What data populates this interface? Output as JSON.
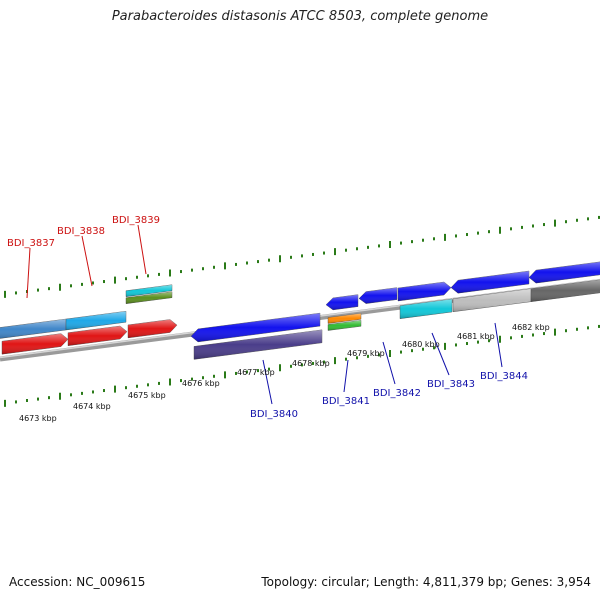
{
  "title": "Parabacteroides distasonis ATCC 8503, complete genome",
  "footer": {
    "accession": "Accession: NC_009615",
    "stats": "Topology: circular; Length: 4,811,379 bp; Genes: 3,954"
  },
  "colors": {
    "tick": "#2a7a18",
    "backbone": "#888888",
    "label_red": "#cc1111",
    "label_blue": "#1111aa"
  },
  "scale_labels": [
    "4673 kbp",
    "4674 kbp",
    "4675 kbp",
    "4676 kbp",
    "4677 kbp",
    "4678 kbp",
    "4679 kbp",
    "4680 kbp",
    "4681 kbp",
    "4682 kbp"
  ],
  "gene_labels": [
    {
      "name": "BDI_3837",
      "color": "red"
    },
    {
      "name": "BDI_3838",
      "color": "red"
    },
    {
      "name": "BDI_3839",
      "color": "red"
    },
    {
      "name": "BDI_3840",
      "color": "blue"
    },
    {
      "name": "BDI_3841",
      "color": "blue"
    },
    {
      "name": "BDI_3842",
      "color": "blue"
    },
    {
      "name": "BDI_3843",
      "color": "blue"
    },
    {
      "name": "BDI_3844",
      "color": "blue"
    }
  ],
  "features": [
    {
      "type": "gene",
      "strand": "+",
      "color": "#3f86c9"
    },
    {
      "type": "gene",
      "strand": "+",
      "color": "#1ea8e8"
    },
    {
      "type": "gene",
      "strand": "+",
      "color": "#11c7d8"
    },
    {
      "type": "gene",
      "strand": "+",
      "color": "#5b8f1e"
    },
    {
      "type": "gene",
      "strand": "+",
      "color": "#e01515"
    },
    {
      "type": "gene",
      "strand": "+",
      "color": "#e01515"
    },
    {
      "type": "gene",
      "strand": "+",
      "color": "#e01515"
    },
    {
      "type": "gene",
      "strand": "-",
      "color": "#1212ee"
    },
    {
      "type": "gene",
      "strand": "-",
      "color": "#4a3d8a"
    },
    {
      "type": "gene",
      "strand": "-",
      "color": "#1212ee"
    },
    {
      "type": "gene",
      "strand": "+",
      "color": "#ff8800"
    },
    {
      "type": "gene",
      "strand": "+",
      "color": "#33bb33"
    },
    {
      "type": "gene",
      "strand": "-",
      "color": "#1212ee"
    },
    {
      "type": "gene",
      "strand": "+",
      "color": "#1212ee"
    },
    {
      "type": "gene",
      "strand": "+",
      "color": "#11c7d8"
    },
    {
      "type": "gene",
      "strand": "-",
      "color": "#1212ee"
    },
    {
      "type": "gene",
      "strand": "-",
      "color": "#bdbdbd"
    },
    {
      "type": "gene",
      "strand": "-",
      "color": "#1212ee"
    },
    {
      "type": "gene",
      "strand": "-",
      "color": "#666666"
    }
  ]
}
